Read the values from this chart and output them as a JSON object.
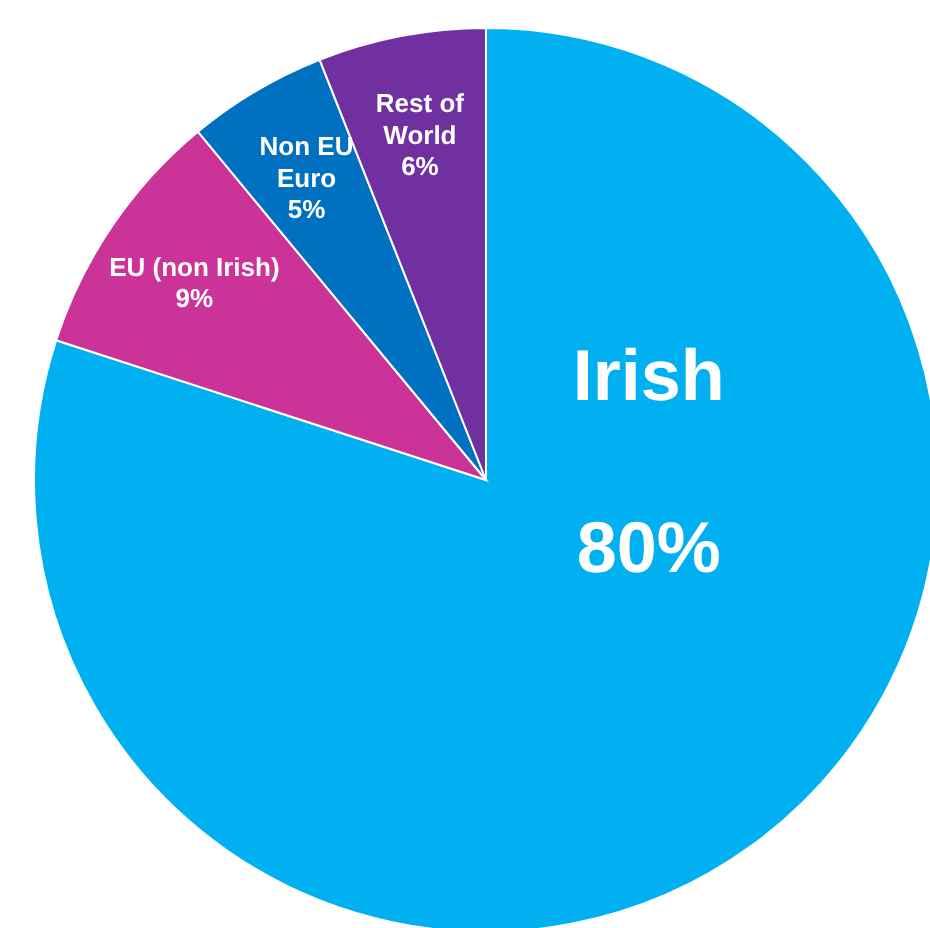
{
  "chart_data": {
    "type": "pie",
    "categories": [
      "Irish",
      "EU (non Irish)",
      "Non EU Euro",
      "Rest of World"
    ],
    "values": [
      80,
      9,
      5,
      6
    ],
    "colors": [
      "#00b0f0",
      "#cc3399",
      "#0070c0",
      "#7030a0"
    ],
    "value_labels": [
      "80%",
      "9%",
      "5%",
      "6%"
    ]
  }
}
